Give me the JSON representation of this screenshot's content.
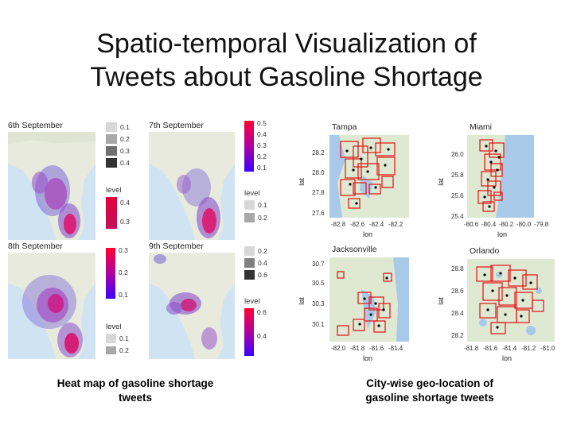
{
  "slide": {
    "title_line1": "Spatio-temporal Visualization of",
    "title_line2": "Tweets about Gasoline Shortage",
    "caption_left_line1": "Heat map of gasoline shortage",
    "caption_left_line2": "tweets",
    "caption_right_line1": "City-wise geo-location of",
    "caption_right_line2": "gasoline shortage tweets"
  },
  "heatmaps": [
    {
      "title": "6th September",
      "legend_top": [
        "0.1",
        "0.2",
        "0.3",
        "0.4"
      ],
      "legend_bottom_title": "level",
      "legend_bottom": [
        "0.4",
        "0.3"
      ]
    },
    {
      "title": "7th September",
      "legend_top": [
        "0.5",
        "0.4",
        "0.3",
        "0.2",
        "0.1"
      ],
      "legend_bottom_title": "level",
      "legend_bottom": [
        "0.1",
        "0.2"
      ]
    },
    {
      "title": "8th September",
      "legend_top": [
        "0.3",
        "0.2",
        "0.1"
      ],
      "legend_bottom_title": "level",
      "legend_bottom": [
        "0.1",
        "0.2"
      ]
    },
    {
      "title": "9th September",
      "legend_top": [
        "0.2",
        "0.4",
        "0.6"
      ],
      "legend_bottom_title": "level",
      "legend_bottom": [
        "0.6",
        "0.4"
      ]
    }
  ],
  "cities": [
    {
      "name": "Tampa",
      "y_ticks": [
        "28.2",
        "28.0",
        "27.8",
        "27.6"
      ],
      "x_ticks": [
        "-82.8",
        "-82.6",
        "-82.4",
        "-82.2"
      ],
      "xlabel": "lon",
      "ylabel": "lat"
    },
    {
      "name": "Miami",
      "y_ticks": [
        "26.0",
        "25.8",
        "25.6",
        "25.4"
      ],
      "x_ticks": [
        "-80.6",
        "-80.4",
        "-80.2",
        "-80.0",
        "-79.8"
      ],
      "xlabel": "lon",
      "ylabel": "lat"
    },
    {
      "name": "Jacksonville",
      "y_ticks": [
        "30.7",
        "30.5",
        "30.3",
        "30.1"
      ],
      "x_ticks": [
        "-82.0",
        "-81.8",
        "-81.6",
        "-81.4"
      ],
      "xlabel": "lon",
      "ylabel": "lat"
    },
    {
      "name": "Orlando",
      "y_ticks": [
        "28.8",
        "28.6",
        "28.4",
        "28.2"
      ],
      "x_ticks": [
        "-81.8",
        "-81.6",
        "-81.4",
        "-81.2",
        "-81.0"
      ],
      "xlabel": "lon",
      "ylabel": "lat"
    }
  ]
}
